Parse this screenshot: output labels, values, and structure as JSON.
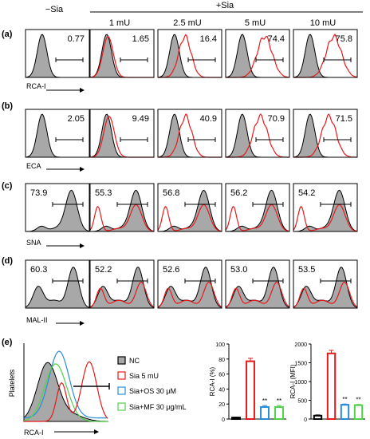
{
  "header": {
    "neg_label": "−Sia",
    "pos_label": "+Sia",
    "doses": [
      "1 mU",
      "2.5 mU",
      "5 mU",
      "10 mU"
    ]
  },
  "colors": {
    "control_fill": "#a8a8a8",
    "control_line": "#000000",
    "treated_line": "#e8191b",
    "os_line": "#2a8bd8",
    "mf_line": "#4fd24a"
  },
  "chart_data": [
    {
      "type": "histogram",
      "panel": "(a)",
      "row": 0,
      "xlabel": "RCA-I",
      "percent_positive": [
        "0.77",
        "1.65",
        "16.4",
        "74.4",
        "75.8"
      ],
      "control_shape": "low",
      "treated_shift": [
        0,
        0.02,
        0.28,
        0.62,
        0.66
      ]
    },
    {
      "type": "histogram",
      "panel": "(b)",
      "row": 1,
      "xlabel": "ECA",
      "percent_positive": [
        "2.05",
        "9.49",
        "40.9",
        "70.9",
        "71.5"
      ],
      "control_shape": "low",
      "treated_shift": [
        0,
        0.05,
        0.3,
        0.5,
        0.52
      ]
    },
    {
      "type": "histogram",
      "panel": "(c)",
      "row": 2,
      "xlabel": "SNA",
      "percent_positive": [
        "73.9",
        "55.3",
        "56.8",
        "56.2",
        "54.2"
      ],
      "control_shape": "high",
      "treated_shift": [
        0,
        1,
        1,
        1,
        1
      ]
    },
    {
      "type": "histogram",
      "panel": "(d)",
      "row": 3,
      "xlabel": "MAL-II",
      "percent_positive": [
        "60.3",
        "52.2",
        "52.6",
        "53.0",
        "53.5"
      ],
      "control_shape": "bimodal",
      "treated_shift": [
        0,
        1,
        1,
        1,
        1
      ]
    },
    {
      "type": "histogram",
      "panel": "(e)",
      "xlabel": "RCA-I",
      "ylabel": "Platelets",
      "legend": [
        "NC",
        "Sia 5 mU",
        "Sia+OS 30 μM",
        "Sia+MF 30 μg/mL"
      ]
    },
    {
      "type": "bar",
      "panel": "(e)",
      "ylabel": "RCA-I (%)",
      "ylim": [
        0,
        100
      ],
      "yticks": [
        "0",
        "20",
        "40",
        "60",
        "80",
        "100"
      ],
      "categories": [
        "NC",
        "Sia 5 mU",
        "Sia+OS 30 μM",
        "Sia+MF 30 μg/mL"
      ],
      "values": [
        2,
        77,
        16,
        16
      ],
      "errors": [
        0.5,
        4,
        2,
        2
      ],
      "significance": [
        "",
        "",
        "**",
        "**"
      ]
    },
    {
      "type": "bar",
      "panel": "(e)",
      "ylabel": "RCA-I (MFI)",
      "ylim": [
        0,
        2000
      ],
      "yticks": [
        "0",
        "500",
        "1000",
        "1500",
        "2000"
      ],
      "categories": [
        "NC",
        "Sia 5 mU",
        "Sia+OS 30 μM",
        "Sia+MF 30 μg/mL"
      ],
      "values": [
        90,
        1750,
        380,
        370
      ],
      "errors": [
        20,
        80,
        20,
        20
      ],
      "significance": [
        "",
        "",
        "**",
        "**"
      ]
    }
  ]
}
